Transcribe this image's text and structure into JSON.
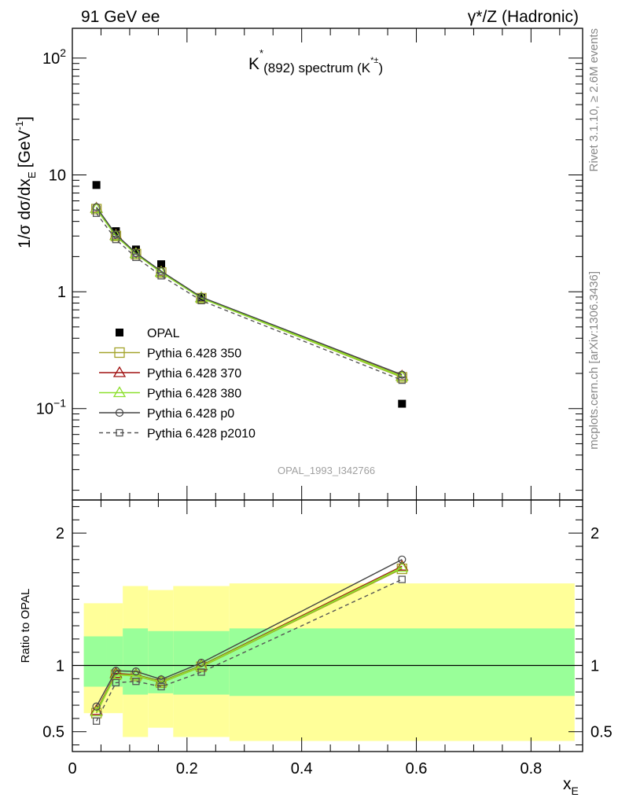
{
  "header": {
    "left": "91 GeV ee",
    "right": "γ*/Z (Hadronic)"
  },
  "side_labels": {
    "rivet": "Rivet 3.1.10, ≥ 2.6M events",
    "mcplots": "mcplots.cern.ch [arXiv:1306.3436]"
  },
  "watermark": "OPAL_1993_I342766",
  "colors": {
    "band_inner": "#99ff99",
    "band_outer": "#ffff99",
    "opal": "#000000",
    "p350": "#a3a32a",
    "p370": "#a01010",
    "p380": "#8ce02c",
    "p0": "#444444",
    "p2010": "#555555",
    "side_text": "#888888"
  },
  "chart_data": [
    {
      "type": "line",
      "panel": "main",
      "title_main": "K",
      "title_sup": "*",
      "title_sub": "(892) spectrum (K",
      "title_sup2": "*±",
      "title_close": ")",
      "ylabel": "1/σ dσ/dx",
      "ylabel_sub": "E",
      "ylabel_unit": "[GeV",
      "ylabel_unit_sup": "-1",
      "ylabel_unit_end": "]",
      "yscale": "log",
      "ylim": [
        0.0165,
        180
      ],
      "xlim": [
        0,
        0.89
      ],
      "yticks": [
        {
          "value": 0.1,
          "base": "10",
          "exp": "−1"
        },
        {
          "value": 1,
          "label": "1"
        },
        {
          "value": 10,
          "label": "10"
        },
        {
          "value": 100,
          "base": "10",
          "exp": "2"
        }
      ],
      "legend_position": "middle-left",
      "series": [
        {
          "name": "OPAL",
          "key": "opal",
          "marker": "filled-square",
          "line": "none",
          "x": [
            0.042,
            0.076,
            0.111,
            0.155,
            0.225,
            0.575
          ],
          "y": [
            8.2,
            3.3,
            2.3,
            1.72,
            0.89,
            0.11
          ]
        },
        {
          "name": "Pythia 6.428 350",
          "key": "p350",
          "marker": "open-square",
          "line": "solid",
          "x": [
            0.042,
            0.076,
            0.111,
            0.155,
            0.225,
            0.575
          ],
          "y": [
            5.1,
            3.0,
            2.1,
            1.46,
            0.88,
            0.185
          ]
        },
        {
          "name": "Pythia 6.428 370",
          "key": "p370",
          "marker": "open-triangle",
          "line": "solid",
          "x": [
            0.042,
            0.076,
            0.111,
            0.155,
            0.225,
            0.575
          ],
          "y": [
            5.2,
            3.05,
            2.13,
            1.48,
            0.89,
            0.19
          ]
        },
        {
          "name": "Pythia 6.428 380",
          "key": "p380",
          "marker": "open-triangle",
          "line": "solid",
          "x": [
            0.042,
            0.076,
            0.111,
            0.155,
            0.225,
            0.575
          ],
          "y": [
            5.15,
            3.02,
            2.12,
            1.47,
            0.885,
            0.188
          ]
        },
        {
          "name": "Pythia 6.428 p0",
          "key": "p0",
          "marker": "open-circle",
          "line": "solid",
          "x": [
            0.042,
            0.076,
            0.111,
            0.155,
            0.225,
            0.575
          ],
          "y": [
            5.3,
            3.1,
            2.15,
            1.5,
            0.9,
            0.195
          ]
        },
        {
          "name": "Pythia 6.428 p2010",
          "key": "p2010",
          "marker": "open-square",
          "line": "dashed",
          "x": [
            0.042,
            0.076,
            0.111,
            0.155,
            0.225,
            0.575
          ],
          "y": [
            4.7,
            2.8,
            1.97,
            1.37,
            0.84,
            0.175
          ]
        }
      ]
    },
    {
      "type": "line",
      "panel": "ratio",
      "ylabel": "Ratio to OPAL",
      "xlabel": "x",
      "xlabel_sub": "E",
      "yscale": "linear",
      "ylim": [
        0.35,
        2.25
      ],
      "xlim": [
        0,
        0.89
      ],
      "yticks": [
        0.5,
        1,
        2
      ],
      "xticks": [
        0,
        0.2,
        0.4,
        0.6,
        0.8
      ],
      "reference_line": 1,
      "uncertainty_bands": [
        {
          "x_lo": 0.02,
          "x_hi": 0.059,
          "inner": [
            0.84,
            1.22
          ],
          "outer": [
            0.64,
            1.47
          ]
        },
        {
          "x_lo": 0.059,
          "x_hi": 0.088,
          "inner": [
            0.84,
            1.22
          ],
          "outer": [
            0.64,
            1.47
          ]
        },
        {
          "x_lo": 0.088,
          "x_hi": 0.132,
          "inner": [
            0.78,
            1.28
          ],
          "outer": [
            0.46,
            1.6
          ]
        },
        {
          "x_lo": 0.132,
          "x_hi": 0.176,
          "inner": [
            0.79,
            1.26
          ],
          "outer": [
            0.53,
            1.57
          ]
        },
        {
          "x_lo": 0.176,
          "x_hi": 0.274,
          "inner": [
            0.78,
            1.26
          ],
          "outer": [
            0.46,
            1.6
          ]
        },
        {
          "x_lo": 0.274,
          "x_hi": 0.876,
          "inner": [
            0.77,
            1.28
          ],
          "outer": [
            0.43,
            1.62
          ]
        }
      ],
      "series": [
        {
          "name": "Pythia 6.428 350",
          "key": "p350",
          "marker": "open-square",
          "line": "solid",
          "x": [
            0.042,
            0.076,
            0.111,
            0.155,
            0.225,
            0.575
          ],
          "y": [
            0.64,
            0.93,
            0.92,
            0.87,
            0.99,
            1.73
          ]
        },
        {
          "name": "Pythia 6.428 370",
          "key": "p370",
          "marker": "open-triangle",
          "line": "solid",
          "x": [
            0.042,
            0.076,
            0.111,
            0.155,
            0.225,
            0.575
          ],
          "y": [
            0.66,
            0.94,
            0.93,
            0.88,
            1.0,
            1.75
          ]
        },
        {
          "name": "Pythia 6.428 380",
          "key": "p380",
          "marker": "open-triangle",
          "line": "solid",
          "x": [
            0.042,
            0.076,
            0.111,
            0.155,
            0.225,
            0.575
          ],
          "y": [
            0.65,
            0.93,
            0.925,
            0.875,
            0.995,
            1.74
          ]
        },
        {
          "name": "Pythia 6.428 p0",
          "key": "p0",
          "marker": "open-circle",
          "line": "solid",
          "x": [
            0.042,
            0.076,
            0.111,
            0.155,
            0.225,
            0.575
          ],
          "y": [
            0.69,
            0.96,
            0.955,
            0.895,
            1.02,
            1.8
          ]
        },
        {
          "name": "Pythia 6.428 p2010",
          "key": "p2010",
          "marker": "open-square",
          "line": "dashed",
          "x": [
            0.042,
            0.076,
            0.111,
            0.155,
            0.225,
            0.575
          ],
          "y": [
            0.58,
            0.87,
            0.88,
            0.84,
            0.95,
            1.65
          ]
        }
      ]
    }
  ]
}
